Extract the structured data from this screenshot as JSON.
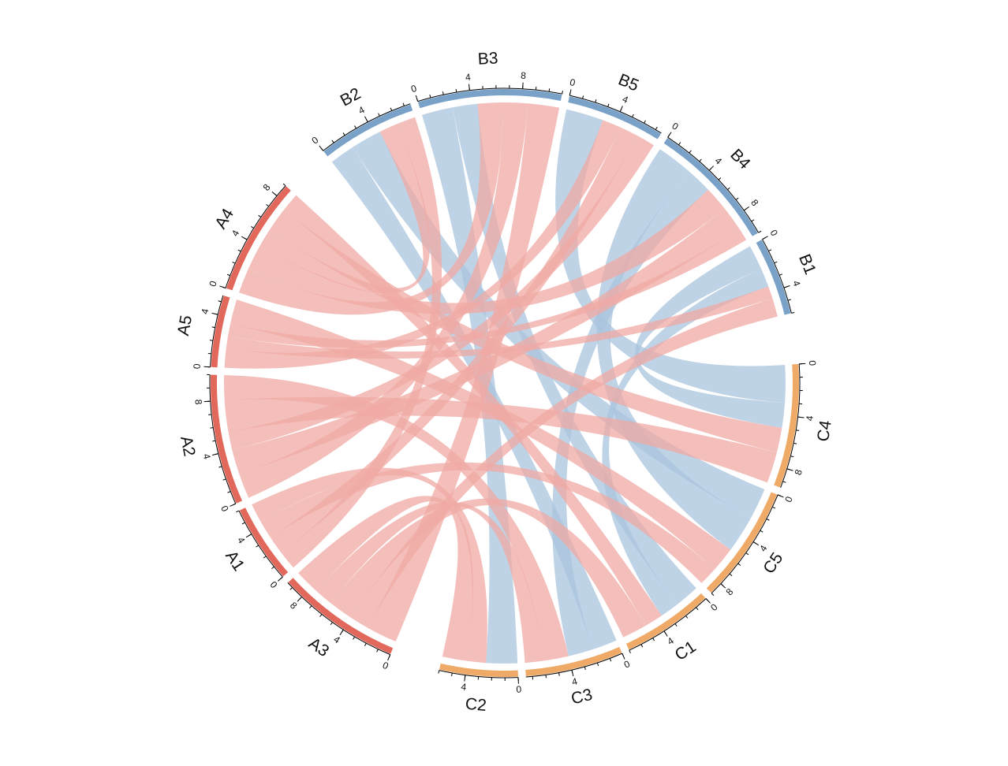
{
  "chart_data": {
    "type": "chord",
    "sectors": [
      {
        "name": "B2",
        "color": "#7aa2c8",
        "chord_color": "#a9c4dd"
      },
      {
        "name": "B3",
        "color": "#7aa2c8",
        "chord_color": "#a9c4dd"
      },
      {
        "name": "B5",
        "color": "#7aa2c8",
        "chord_color": "#a9c4dd"
      },
      {
        "name": "B4",
        "color": "#7aa2c8",
        "chord_color": "#a9c4dd"
      },
      {
        "name": "B1",
        "color": "#7aa2c8",
        "chord_color": "#a9c4dd"
      },
      {
        "name": "C4",
        "color": "#eeaa66",
        "chord_color": "#f3c99a"
      },
      {
        "name": "C5",
        "color": "#eeaa66",
        "chord_color": "#f3c99a"
      },
      {
        "name": "C1",
        "color": "#eeaa66",
        "chord_color": "#f3c99a"
      },
      {
        "name": "C3",
        "color": "#eeaa66",
        "chord_color": "#f3c99a"
      },
      {
        "name": "C2",
        "color": "#eeaa66",
        "chord_color": "#f3c99a"
      },
      {
        "name": "A3",
        "color": "#e2685c",
        "chord_color": "#f0a9a4"
      },
      {
        "name": "A1",
        "color": "#e2685c",
        "chord_color": "#f0a9a4"
      },
      {
        "name": "A2",
        "color": "#e2685c",
        "chord_color": "#f0a9a4"
      },
      {
        "name": "A5",
        "color": "#e2685c",
        "chord_color": "#f0a9a4"
      },
      {
        "name": "A4",
        "color": "#e2685c",
        "chord_color": "#f0a9a4"
      }
    ],
    "links": [
      {
        "source": "B2",
        "target": "C3",
        "value": 2
      },
      {
        "source": "B2",
        "target": "C5",
        "value": 2.5
      },
      {
        "source": "B3",
        "target": "C2",
        "value": 2.5
      },
      {
        "source": "B3",
        "target": "C1",
        "value": 2
      },
      {
        "source": "B5",
        "target": "C4",
        "value": 3
      },
      {
        "source": "B4",
        "target": "C5",
        "value": 3
      },
      {
        "source": "B4",
        "target": "C3",
        "value": 2
      },
      {
        "source": "B1",
        "target": "C4",
        "value": 2
      },
      {
        "source": "B1",
        "target": "C1",
        "value": 1.5
      },
      {
        "source": "A4",
        "target": "B3",
        "value": 2
      },
      {
        "source": "A4",
        "target": "B4",
        "value": 2
      },
      {
        "source": "A4",
        "target": "B2",
        "value": 1.5
      },
      {
        "source": "A5",
        "target": "B5",
        "value": 1.5
      },
      {
        "source": "A5",
        "target": "B1",
        "value": 1
      },
      {
        "source": "A2",
        "target": "B3",
        "value": 2
      },
      {
        "source": "A2",
        "target": "B4",
        "value": 2
      },
      {
        "source": "A1",
        "target": "B2",
        "value": 1.5
      },
      {
        "source": "A1",
        "target": "B5",
        "value": 1.5
      },
      {
        "source": "A3",
        "target": "B3",
        "value": 2.5
      },
      {
        "source": "A3",
        "target": "B1",
        "value": 1.5
      },
      {
        "source": "A2",
        "target": "B5",
        "value": 1.5
      },
      {
        "source": "A5",
        "target": "B4",
        "value": 1
      },
      {
        "source": "A4",
        "target": "C4",
        "value": 2
      },
      {
        "source": "A4",
        "target": "C1",
        "value": 1.5
      },
      {
        "source": "A5",
        "target": "C5",
        "value": 2
      },
      {
        "source": "A2",
        "target": "C4",
        "value": 2.5
      },
      {
        "source": "A2",
        "target": "C3",
        "value": 2
      },
      {
        "source": "A1",
        "target": "C5",
        "value": 1.5
      },
      {
        "source": "A1",
        "target": "C2",
        "value": 1.5
      },
      {
        "source": "A3",
        "target": "C1",
        "value": 2
      },
      {
        "source": "A3",
        "target": "C3",
        "value": 1.5
      },
      {
        "source": "A3",
        "target": "C2",
        "value": 2
      }
    ],
    "ticks": [
      0,
      4,
      8
    ]
  }
}
